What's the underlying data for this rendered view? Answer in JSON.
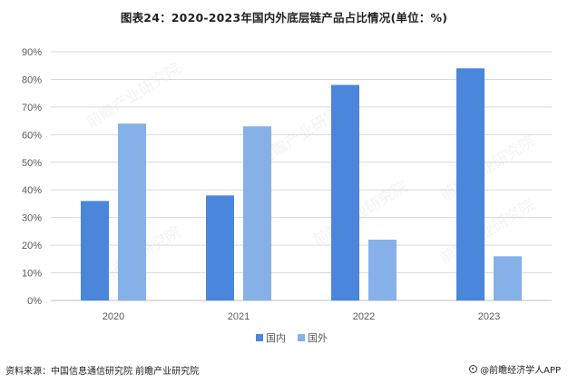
{
  "title": "图表24：2020-2023年国内外底层链产品占比情况(单位：%)",
  "source": "资料来源：中国信息通信研究院 前瞻产业研究院",
  "credit": "@前瞻经济学人APP",
  "watermark": "前瞻产业研究院",
  "colors": {
    "domestic": "#4a86dc",
    "foreign": "#86b1e8",
    "grid": "#d9d9d9",
    "axis_text": "#595959"
  },
  "chart_data": {
    "type": "bar",
    "categories": [
      "2020",
      "2021",
      "2022",
      "2023"
    ],
    "series": [
      {
        "name": "国内",
        "values": [
          36,
          38,
          78,
          84
        ]
      },
      {
        "name": "国外",
        "values": [
          64,
          63,
          22,
          16
        ]
      }
    ],
    "y_ticks": [
      "0%",
      "10%",
      "20%",
      "30%",
      "40%",
      "50%",
      "60%",
      "70%",
      "80%",
      "90%"
    ],
    "ylim": [
      0,
      90
    ],
    "grid": true,
    "legend_position": "bottom-center"
  }
}
